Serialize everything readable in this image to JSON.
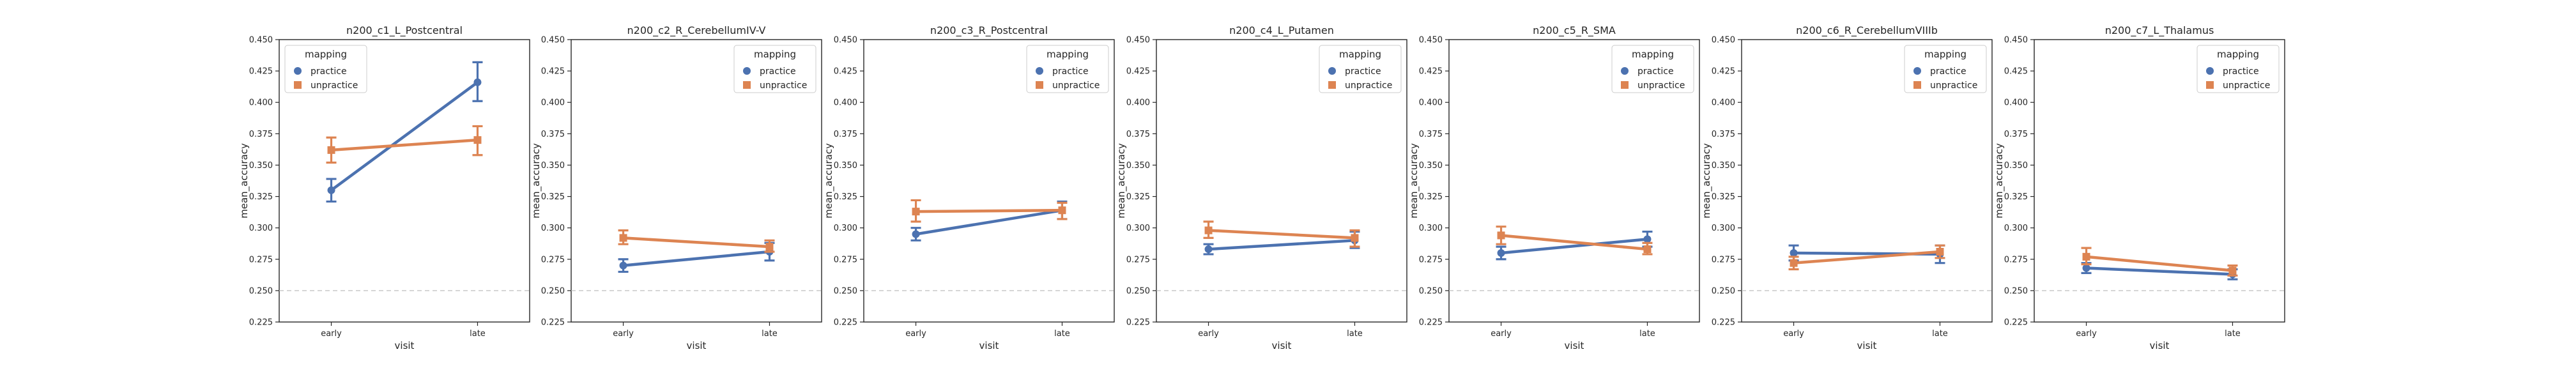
{
  "chart_data": [
    {
      "type": "line",
      "title": "n200_c1_L_Postcentral",
      "xlabel": "visit",
      "ylabel": "mean_accuracy",
      "categories": [
        "early",
        "late"
      ],
      "ylim": [
        0.225,
        0.45
      ],
      "yticks": [
        "0.225",
        "0.250",
        "0.275",
        "0.300",
        "0.325",
        "0.350",
        "0.375",
        "0.400",
        "0.425",
        "0.450"
      ],
      "reference_line": 0.25,
      "legend": {
        "title": "mapping",
        "placement": "upper-left"
      },
      "series": [
        {
          "name": "practice",
          "color": "#4c72b0",
          "marker": "circle",
          "values": [
            0.33,
            0.416
          ],
          "error": [
            [
              0.321,
              0.339
            ],
            [
              0.401,
              0.432
            ]
          ]
        },
        {
          "name": "unpractice",
          "color": "#dd8452",
          "marker": "square",
          "values": [
            0.362,
            0.37
          ],
          "error": [
            [
              0.352,
              0.372
            ],
            [
              0.358,
              0.381
            ]
          ]
        }
      ]
    },
    {
      "type": "line",
      "title": "n200_c2_R_CerebellumIV-V",
      "xlabel": "visit",
      "ylabel": "mean_accuracy",
      "categories": [
        "early",
        "late"
      ],
      "ylim": [
        0.225,
        0.45
      ],
      "yticks": [
        "0.225",
        "0.250",
        "0.275",
        "0.300",
        "0.325",
        "0.350",
        "0.375",
        "0.400",
        "0.425",
        "0.450"
      ],
      "reference_line": 0.25,
      "legend": {
        "title": "mapping",
        "placement": "upper-right"
      },
      "series": [
        {
          "name": "practice",
          "color": "#4c72b0",
          "marker": "circle",
          "values": [
            0.27,
            0.281
          ],
          "error": [
            [
              0.265,
              0.275
            ],
            [
              0.274,
              0.288
            ]
          ]
        },
        {
          "name": "unpractice",
          "color": "#dd8452",
          "marker": "square",
          "values": [
            0.292,
            0.285
          ],
          "error": [
            [
              0.287,
              0.298
            ],
            [
              0.281,
              0.29
            ]
          ]
        }
      ]
    },
    {
      "type": "line",
      "title": "n200_c3_R_Postcentral",
      "xlabel": "visit",
      "ylabel": "mean_accuracy",
      "categories": [
        "early",
        "late"
      ],
      "ylim": [
        0.225,
        0.45
      ],
      "yticks": [
        "0.225",
        "0.250",
        "0.275",
        "0.300",
        "0.325",
        "0.350",
        "0.375",
        "0.400",
        "0.425",
        "0.450"
      ],
      "reference_line": 0.25,
      "legend": {
        "title": "mapping",
        "placement": "upper-right"
      },
      "series": [
        {
          "name": "practice",
          "color": "#4c72b0",
          "marker": "circle",
          "values": [
            0.295,
            0.314
          ],
          "error": [
            [
              0.29,
              0.3
            ],
            [
              0.307,
              0.321
            ]
          ]
        },
        {
          "name": "unpractice",
          "color": "#dd8452",
          "marker": "square",
          "values": [
            0.313,
            0.314
          ],
          "error": [
            [
              0.305,
              0.322
            ],
            [
              0.307,
              0.32
            ]
          ]
        }
      ]
    },
    {
      "type": "line",
      "title": "n200_c4_L_Putamen",
      "xlabel": "visit",
      "ylabel": "mean_accuracy",
      "categories": [
        "early",
        "late"
      ],
      "ylim": [
        0.225,
        0.45
      ],
      "yticks": [
        "0.225",
        "0.250",
        "0.275",
        "0.300",
        "0.325",
        "0.350",
        "0.375",
        "0.400",
        "0.425",
        "0.450"
      ],
      "reference_line": 0.25,
      "legend": {
        "title": "mapping",
        "placement": "upper-right"
      },
      "series": [
        {
          "name": "practice",
          "color": "#4c72b0",
          "marker": "circle",
          "values": [
            0.283,
            0.29
          ],
          "error": [
            [
              0.279,
              0.287
            ],
            [
              0.284,
              0.297
            ]
          ]
        },
        {
          "name": "unpractice",
          "color": "#dd8452",
          "marker": "square",
          "values": [
            0.298,
            0.292
          ],
          "error": [
            [
              0.292,
              0.305
            ],
            [
              0.285,
              0.298
            ]
          ]
        }
      ]
    },
    {
      "type": "line",
      "title": "n200_c5_R_SMA",
      "xlabel": "visit",
      "ylabel": "mean_accuracy",
      "categories": [
        "early",
        "late"
      ],
      "ylim": [
        0.225,
        0.45
      ],
      "yticks": [
        "0.225",
        "0.250",
        "0.275",
        "0.300",
        "0.325",
        "0.350",
        "0.375",
        "0.400",
        "0.425",
        "0.450"
      ],
      "reference_line": 0.25,
      "legend": {
        "title": "mapping",
        "placement": "upper-right"
      },
      "series": [
        {
          "name": "practice",
          "color": "#4c72b0",
          "marker": "circle",
          "values": [
            0.28,
            0.291
          ],
          "error": [
            [
              0.275,
              0.285
            ],
            [
              0.285,
              0.297
            ]
          ]
        },
        {
          "name": "unpractice",
          "color": "#dd8452",
          "marker": "square",
          "values": [
            0.294,
            0.283
          ],
          "error": [
            [
              0.287,
              0.301
            ],
            [
              0.279,
              0.288
            ]
          ]
        }
      ]
    },
    {
      "type": "line",
      "title": "n200_c6_R_CerebellumVIIIb",
      "xlabel": "visit",
      "ylabel": "mean_accuracy",
      "categories": [
        "early",
        "late"
      ],
      "ylim": [
        0.225,
        0.45
      ],
      "yticks": [
        "0.225",
        "0.250",
        "0.275",
        "0.300",
        "0.325",
        "0.350",
        "0.375",
        "0.400",
        "0.425",
        "0.450"
      ],
      "reference_line": 0.25,
      "legend": {
        "title": "mapping",
        "placement": "upper-right"
      },
      "series": [
        {
          "name": "practice",
          "color": "#4c72b0",
          "marker": "circle",
          "values": [
            0.28,
            0.279
          ],
          "error": [
            [
              0.274,
              0.286
            ],
            [
              0.272,
              0.286
            ]
          ]
        },
        {
          "name": "unpractice",
          "color": "#dd8452",
          "marker": "square",
          "values": [
            0.272,
            0.281
          ],
          "error": [
            [
              0.267,
              0.277
            ],
            [
              0.276,
              0.286
            ]
          ]
        }
      ]
    },
    {
      "type": "line",
      "title": "n200_c7_L_Thalamus",
      "xlabel": "visit",
      "ylabel": "mean_accuracy",
      "categories": [
        "early",
        "late"
      ],
      "ylim": [
        0.225,
        0.45
      ],
      "yticks": [
        "0.225",
        "0.250",
        "0.275",
        "0.300",
        "0.325",
        "0.350",
        "0.375",
        "0.400",
        "0.425",
        "0.450"
      ],
      "reference_line": 0.25,
      "legend": {
        "title": "mapping",
        "placement": "upper-right"
      },
      "series": [
        {
          "name": "practice",
          "color": "#4c72b0",
          "marker": "circle",
          "values": [
            0.268,
            0.263
          ],
          "error": [
            [
              0.264,
              0.272
            ],
            [
              0.259,
              0.267
            ]
          ]
        },
        {
          "name": "unpractice",
          "color": "#dd8452",
          "marker": "square",
          "values": [
            0.277,
            0.266
          ],
          "error": [
            [
              0.271,
              0.284
            ],
            [
              0.262,
              0.27
            ]
          ]
        }
      ]
    }
  ]
}
